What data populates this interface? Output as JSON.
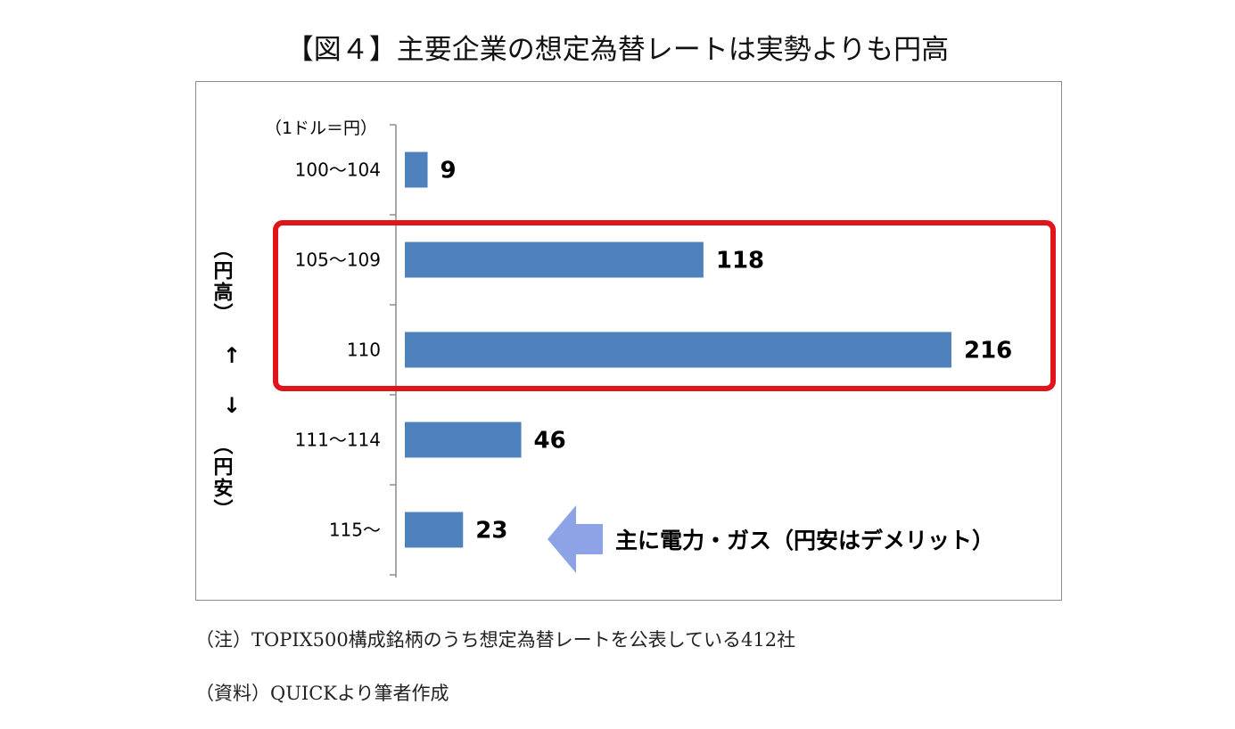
{
  "title": "【図４】主要企業の想定為替レートは実勢よりも円高",
  "chart_data": {
    "type": "bar",
    "orientation": "horizontal",
    "unit_label": "（1ドル＝円）",
    "categories": [
      "100～104",
      "105～109",
      "110",
      "111～114",
      "115～"
    ],
    "values": [
      9,
      118,
      216,
      46,
      23
    ],
    "xlim": [
      0,
      216
    ],
    "bar_color": "#4f81bd",
    "side_labels": {
      "top": "（円高）",
      "up_arrow": "↑",
      "down_arrow": "↓",
      "bottom": "（円安）"
    },
    "annotation": "主に電力・ガス（円安はデメリット）",
    "annotation_arrow_color": "#8ea3e6",
    "highlight_color": "#e0151b",
    "highlight_categories": [
      "105～109",
      "110"
    ]
  },
  "notes": {
    "note1": "（注）TOPIX500構成銘柄のうち想定為替レートを公表している412社",
    "note2": "（資料）QUICKより筆者作成"
  }
}
